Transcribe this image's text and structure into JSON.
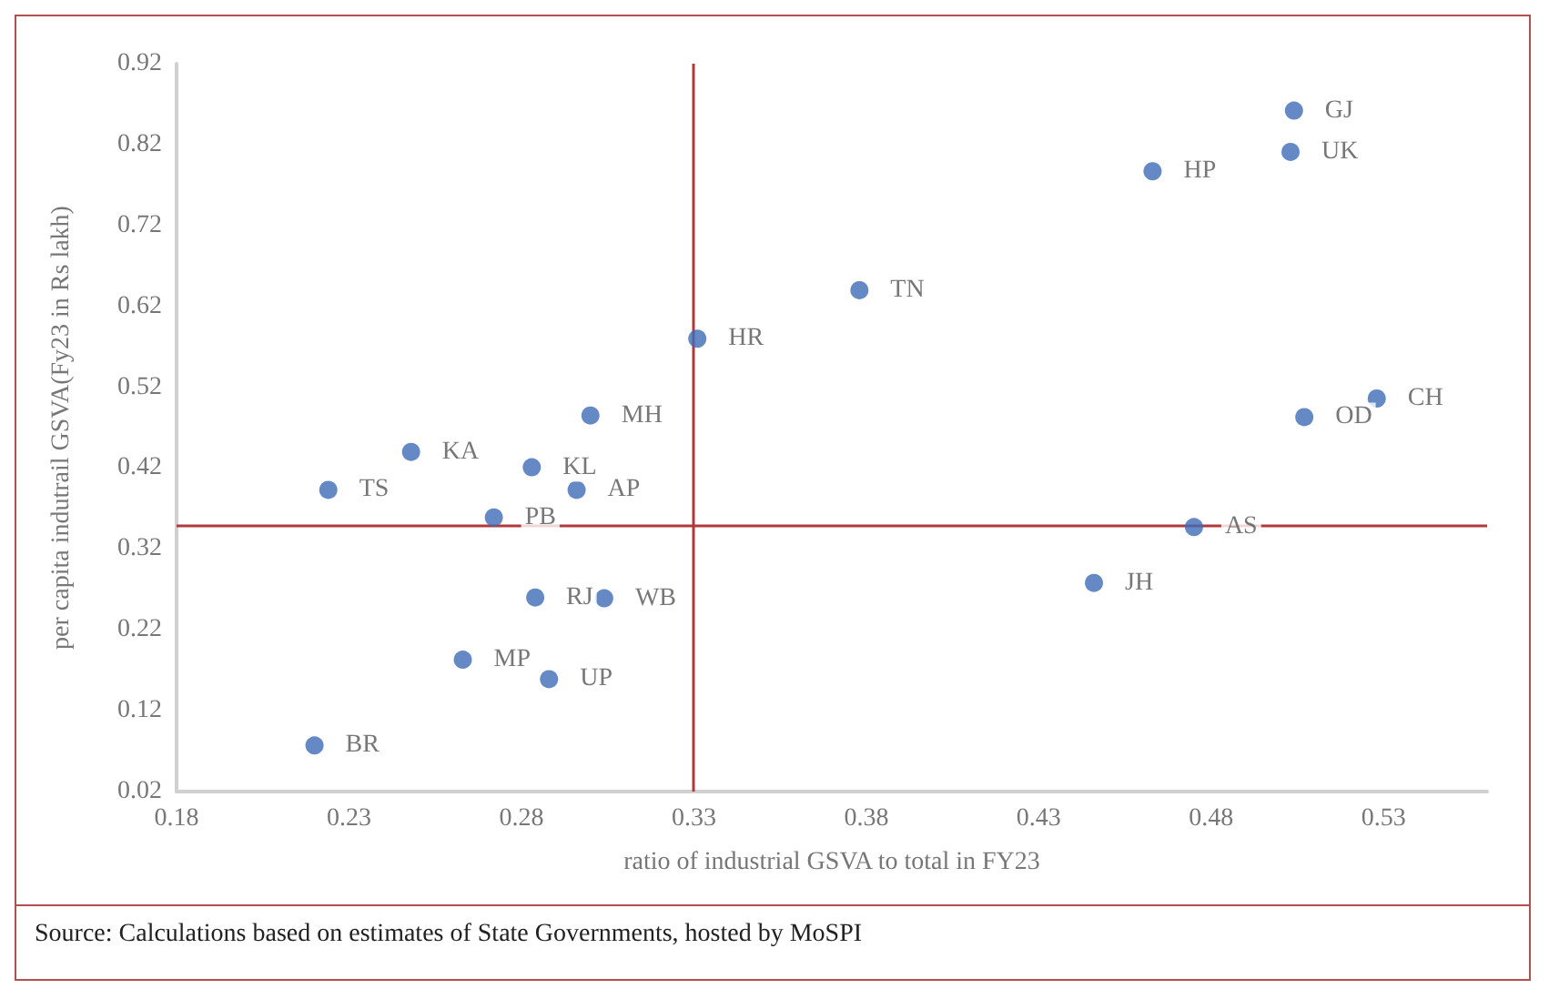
{
  "chart_data": {
    "type": "scatter",
    "xlabel": "ratio of industrial GSVA to total in FY23",
    "ylabel": "per capita indutrail GSVA(Fy23 in Rs lakh)",
    "x": [
      0.331,
      0.3,
      0.248,
      0.283,
      0.224,
      0.296,
      0.272,
      0.284,
      0.304,
      0.263,
      0.288,
      0.22,
      0.504,
      0.503,
      0.463,
      0.378,
      0.528,
      0.507,
      0.475,
      0.446
    ],
    "values": [
      0.58,
      0.485,
      0.44,
      0.421,
      0.393,
      0.393,
      0.359,
      0.26,
      0.259,
      0.183,
      0.159,
      0.077,
      0.862,
      0.811,
      0.787,
      0.64,
      0.506,
      0.483,
      0.347,
      0.278
    ],
    "value_labels": [
      "HR",
      "MH",
      "KA",
      "KL",
      "TS",
      "AP",
      "PB",
      "RJ",
      "WB",
      "MP",
      "UP",
      "BR",
      "GJ",
      "UK",
      "HP",
      "TN",
      "CH",
      "OD",
      "AS",
      "JH"
    ],
    "color": "#3f6bb5",
    "marker": "circle",
    "xlim": [
      0.18,
      0.56
    ],
    "xticks": [
      0.18,
      0.23,
      0.28,
      0.33,
      0.38,
      0.43,
      0.48,
      0.53
    ],
    "ylim": [
      0.02,
      0.92
    ],
    "yticks": [
      0.02,
      0.12,
      0.22,
      0.32,
      0.42,
      0.52,
      0.62,
      0.72,
      0.82,
      0.92
    ],
    "grid": false,
    "ref_lines": [
      {
        "axis": "x",
        "value": 0.33,
        "label": null,
        "color": "#b03a3a"
      },
      {
        "axis": "y",
        "value": 0.35,
        "label": null,
        "color": "#b03a3a"
      }
    ],
    "annotations": [
      "Source: Calculations based on estimates of State Governments, hosted by MoSPI"
    ]
  }
}
